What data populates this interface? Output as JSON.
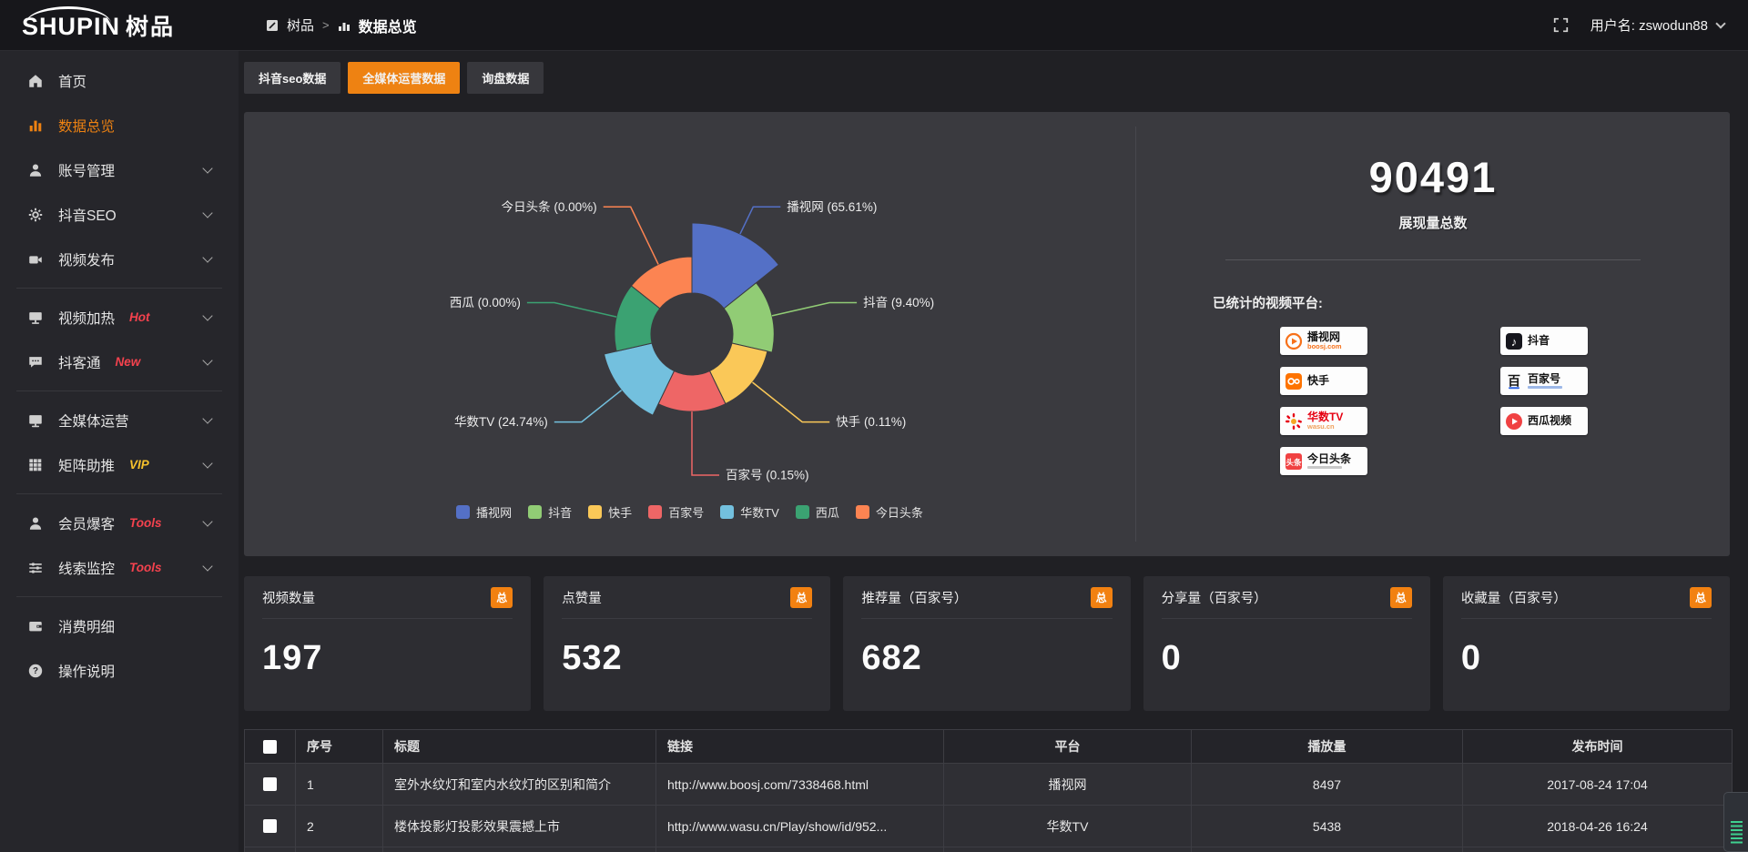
{
  "header": {
    "logo_primary": "SHUPIN",
    "logo_secondary": "树品",
    "breadcrumb_root": "树品",
    "breadcrumb_separator": ">",
    "breadcrumb_current": "数据总览",
    "username": "用户名: zswodun88"
  },
  "sidebar": {
    "items": [
      {
        "key": "home",
        "label": "首页",
        "icon": "home-icon"
      },
      {
        "key": "data-overview",
        "label": "数据总览",
        "icon": "bar-chart-icon",
        "active": true
      },
      {
        "key": "account-manage",
        "label": "账号管理",
        "icon": "user-icon",
        "expandable": true
      },
      {
        "key": "douyin-seo",
        "label": "抖音SEO",
        "icon": "gear-icon",
        "expandable": true
      },
      {
        "key": "video-publish",
        "label": "视频发布",
        "icon": "camera-icon",
        "expandable": true
      },
      {
        "divider": true
      },
      {
        "key": "video-heat",
        "label": "视频加热",
        "icon": "monitor-icon",
        "badge": "Hot",
        "badge_color": "#f5424e",
        "expandable": true
      },
      {
        "key": "douketong",
        "label": "抖客通",
        "icon": "chat-icon",
        "badge": "New",
        "badge_color": "#f5424e",
        "expandable": true
      },
      {
        "divider": true
      },
      {
        "key": "media-operation",
        "label": "全媒体运营",
        "icon": "screen-icon",
        "expandable": true
      },
      {
        "key": "matrix-boost",
        "label": "矩阵助推",
        "icon": "grid-icon",
        "badge": "VIP",
        "badge_color": "#f6c12c",
        "expandable": true
      },
      {
        "divider": true
      },
      {
        "key": "member-baoke",
        "label": "会员爆客",
        "icon": "person-icon",
        "badge": "Tools",
        "badge_color": "#f5424e",
        "expandable": true
      },
      {
        "key": "clue-monitor",
        "label": "线索监控",
        "icon": "sliders-icon",
        "badge": "Tools",
        "badge_color": "#f5424e",
        "expandable": true
      },
      {
        "divider": true
      },
      {
        "key": "consume-detail",
        "label": "消费明细",
        "icon": "wallet-icon"
      },
      {
        "key": "operation-guide",
        "label": "操作说明",
        "icon": "help-icon"
      }
    ]
  },
  "tabs": [
    {
      "key": "douyin-seo-data",
      "label": "抖音seo数据"
    },
    {
      "key": "media-operation-data",
      "label": "全媒体运营数据",
      "active": true
    },
    {
      "key": "inquiry-data",
      "label": "询盘数据"
    }
  ],
  "chart_data": {
    "type": "pie",
    "variant": "nightingale-rose",
    "unit": "percent",
    "items": [
      {
        "name": "播视网",
        "value": 65.61,
        "color": "#5470c6"
      },
      {
        "name": "抖音",
        "value": 9.4,
        "color": "#91cc75"
      },
      {
        "name": "快手",
        "value": 0.11,
        "color": "#fac858"
      },
      {
        "name": "百家号",
        "value": 0.15,
        "color": "#ee6666"
      },
      {
        "name": "华数TV",
        "value": 24.74,
        "color": "#73c0de"
      },
      {
        "name": "西瓜",
        "value": 0.0,
        "color": "#3ba272"
      },
      {
        "name": "今日头条",
        "value": 0.0,
        "color": "#fc8452"
      }
    ],
    "label_format": "{name} ({value}%)",
    "legend": [
      "播视网",
      "抖音",
      "快手",
      "百家号",
      "华数TV",
      "西瓜",
      "今日头条"
    ],
    "legend_position": "bottom"
  },
  "summary": {
    "total_value": "90491",
    "total_label": "展现量总数",
    "platforms_title": "已统计的视频平台:",
    "platform_columns": [
      [
        {
          "key": "boosj",
          "name": "播视网",
          "sub": "boosj.com",
          "sub_color": "#f7711a",
          "icon": "boosj-icon"
        },
        {
          "key": "kuaishou",
          "name": "快手",
          "icon": "kuaishou-icon"
        },
        {
          "key": "wasu",
          "name": "华数TV",
          "sub": "wasu.cn",
          "sub_color": "#f0a05a",
          "icon": "wasu-icon",
          "name_color": "#e60012"
        },
        {
          "key": "toutiao",
          "name": "今日头条",
          "icon": "toutiao-icon",
          "sub_bar": "#c9c9c9"
        }
      ],
      [
        {
          "key": "douyin",
          "name": "抖音",
          "icon": "douyin-icon"
        },
        {
          "key": "baijiahao",
          "name": "百家号",
          "icon": "baijiahao-icon",
          "sub_bar": "#9db8e8"
        },
        {
          "key": "xigua",
          "name": "西瓜视频",
          "icon": "xigua-icon"
        }
      ]
    ]
  },
  "stat_cards": [
    {
      "title": "视频数量",
      "badge": "总",
      "value": "197"
    },
    {
      "title": "点赞量",
      "badge": "总",
      "value": "532"
    },
    {
      "title": "推荐量（百家号）",
      "badge": "总",
      "value": "682"
    },
    {
      "title": "分享量（百家号）",
      "badge": "总",
      "value": "0"
    },
    {
      "title": "收藏量（百家号）",
      "badge": "总",
      "value": "0"
    }
  ],
  "table": {
    "headers": [
      "序号",
      "标题",
      "链接",
      "平台",
      "播放量",
      "发布时间"
    ],
    "rows": [
      {
        "index": "1",
        "title": "室外水纹灯和室内水纹灯的区别和简介",
        "link": "http://www.boosj.com/7338468.html",
        "platform": "播视网",
        "plays": "8497",
        "time": "2017-08-24 17:04"
      },
      {
        "index": "2",
        "title": "楼体投影灯投影效果震撼上市",
        "link": "http://www.wasu.cn/Play/show/id/952...",
        "platform": "华数TV",
        "plays": "5438",
        "time": "2018-04-26 16:24"
      }
    ]
  },
  "colors": {
    "accent": "#ee8212",
    "badge": "#f28111",
    "link": "#eb9340",
    "hot": "#f5424e",
    "vip": "#f6c12c"
  }
}
